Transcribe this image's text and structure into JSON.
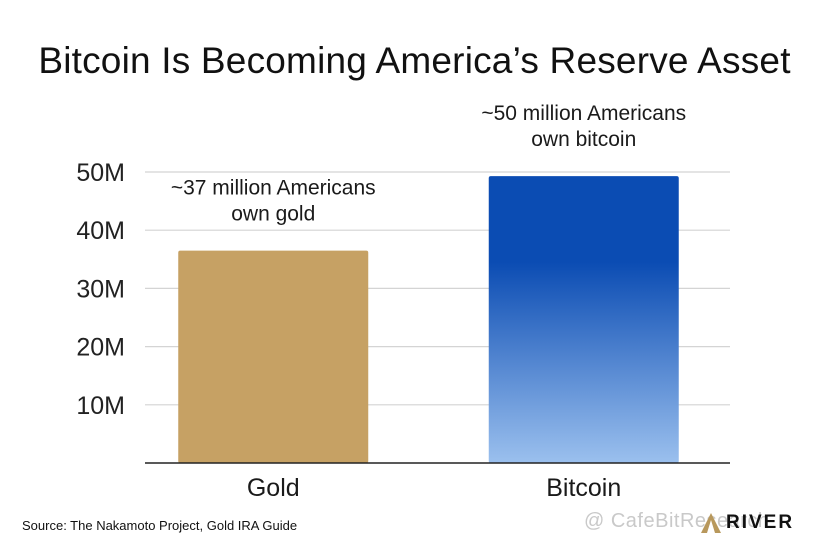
{
  "chart_data": {
    "type": "bar",
    "title": "Bitcoin Is Becoming America’s Reserve Asset",
    "categories": [
      "Gold",
      "Bitcoin"
    ],
    "values": [
      36.5,
      49.3
    ],
    "value_unit": "million Americans",
    "annotations": [
      [
        "~37 million Americans",
        "own gold"
      ],
      [
        "~50 million Americans",
        "own bitcoin"
      ]
    ],
    "yticks": [
      {
        "value": 10,
        "label": "10M"
      },
      {
        "value": 20,
        "label": "20M"
      },
      {
        "value": 30,
        "label": "30M"
      },
      {
        "value": 40,
        "label": "40M"
      },
      {
        "value": 50,
        "label": "50M"
      }
    ],
    "ylim": [
      0,
      50
    ],
    "grid": true,
    "colors": {
      "gold": "#c6a164",
      "bitcoin_top": "#0b4cb3",
      "bitcoin_bottom": "#9bc0ee",
      "grid": "#d4d4d4",
      "axis": "#222222"
    }
  },
  "source": "Source: The Nakamoto Project, Gold IRA Guide",
  "watermark": "@ CafeBitResearch",
  "brand": {
    "name": "RIVER",
    "icon": "river-mountain-icon"
  }
}
